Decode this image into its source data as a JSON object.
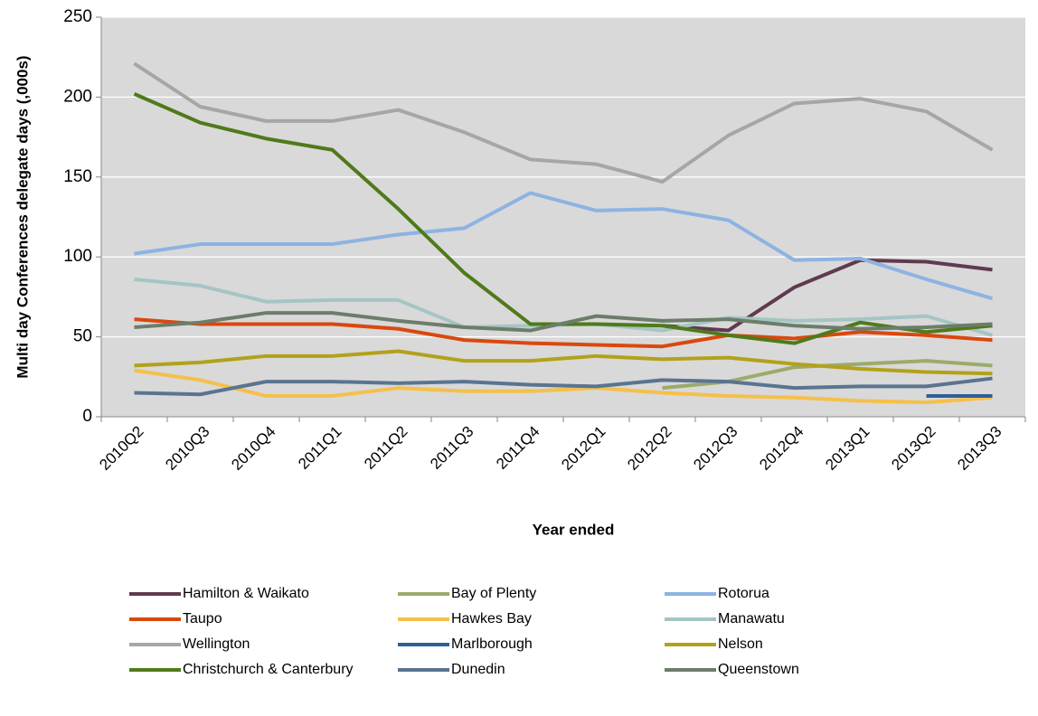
{
  "chart_data": {
    "type": "line",
    "y_label": "Multi day Conferences delegate days (,000s)",
    "x_label": "Year ended",
    "categories": [
      "2010Q2",
      "2010Q3",
      "2010Q4",
      "2011Q1",
      "2011Q2",
      "2011Q3",
      "2011Q4",
      "2012Q1",
      "2012Q2",
      "2012Q3",
      "2012Q4",
      "2013Q1",
      "2013Q2",
      "2013Q3"
    ],
    "ylim": [
      0,
      250
    ],
    "yticks": [
      0,
      50,
      100,
      150,
      200,
      250
    ],
    "grid": true,
    "series": [
      {
        "name": "Hamilton & Waikato",
        "color": "#603a4f",
        "values": [
          null,
          null,
          null,
          null,
          null,
          null,
          null,
          null,
          57,
          54,
          81,
          98,
          97,
          92
        ]
      },
      {
        "name": "Bay of Plenty",
        "color": "#9bab6b",
        "values": [
          null,
          null,
          null,
          null,
          null,
          null,
          null,
          null,
          18,
          22,
          31,
          33,
          35,
          32
        ]
      },
      {
        "name": "Rotorua",
        "color": "#8db3e2",
        "values": [
          102,
          108,
          108,
          108,
          114,
          118,
          140,
          129,
          130,
          123,
          98,
          99,
          86,
          74
        ]
      },
      {
        "name": "Taupo",
        "color": "#d9480f",
        "values": [
          61,
          58,
          58,
          58,
          55,
          48,
          46,
          45,
          44,
          51,
          49,
          53,
          51,
          48
        ]
      },
      {
        "name": "Hawkes Bay",
        "color": "#f4c04a",
        "values": [
          29,
          23,
          13,
          13,
          18,
          16,
          16,
          18,
          15,
          13,
          12,
          10,
          9,
          12
        ]
      },
      {
        "name": "Manawatu",
        "color": "#a4c5c3",
        "values": [
          86,
          82,
          72,
          73,
          73,
          56,
          57,
          58,
          54,
          62,
          60,
          61,
          63,
          51
        ]
      },
      {
        "name": "Wellington",
        "color": "#a6a6a6",
        "values": [
          221,
          194,
          185,
          185,
          192,
          178,
          161,
          158,
          147,
          176,
          196,
          199,
          191,
          167
        ]
      },
      {
        "name": "Marlborough",
        "color": "#2f5f98",
        "values": [
          null,
          null,
          null,
          null,
          null,
          null,
          null,
          null,
          null,
          null,
          null,
          null,
          13,
          13
        ]
      },
      {
        "name": "Nelson",
        "color": "#b3a11b",
        "values": [
          32,
          34,
          38,
          38,
          41,
          35,
          35,
          38,
          36,
          37,
          33,
          30,
          28,
          27
        ]
      },
      {
        "name": "Christchurch & Canterbury",
        "color": "#4f7a1a",
        "values": [
          202,
          184,
          174,
          167,
          130,
          90,
          58,
          58,
          57,
          51,
          46,
          59,
          53,
          57
        ]
      },
      {
        "name": "Dunedin",
        "color": "#5a7490",
        "values": [
          15,
          14,
          22,
          22,
          21,
          22,
          20,
          19,
          23,
          22,
          18,
          19,
          19,
          24
        ]
      },
      {
        "name": "Queenstown",
        "color": "#6c7d6a",
        "values": [
          56,
          59,
          65,
          65,
          60,
          56,
          54,
          63,
          60,
          61,
          57,
          55,
          56,
          58
        ]
      }
    ]
  }
}
